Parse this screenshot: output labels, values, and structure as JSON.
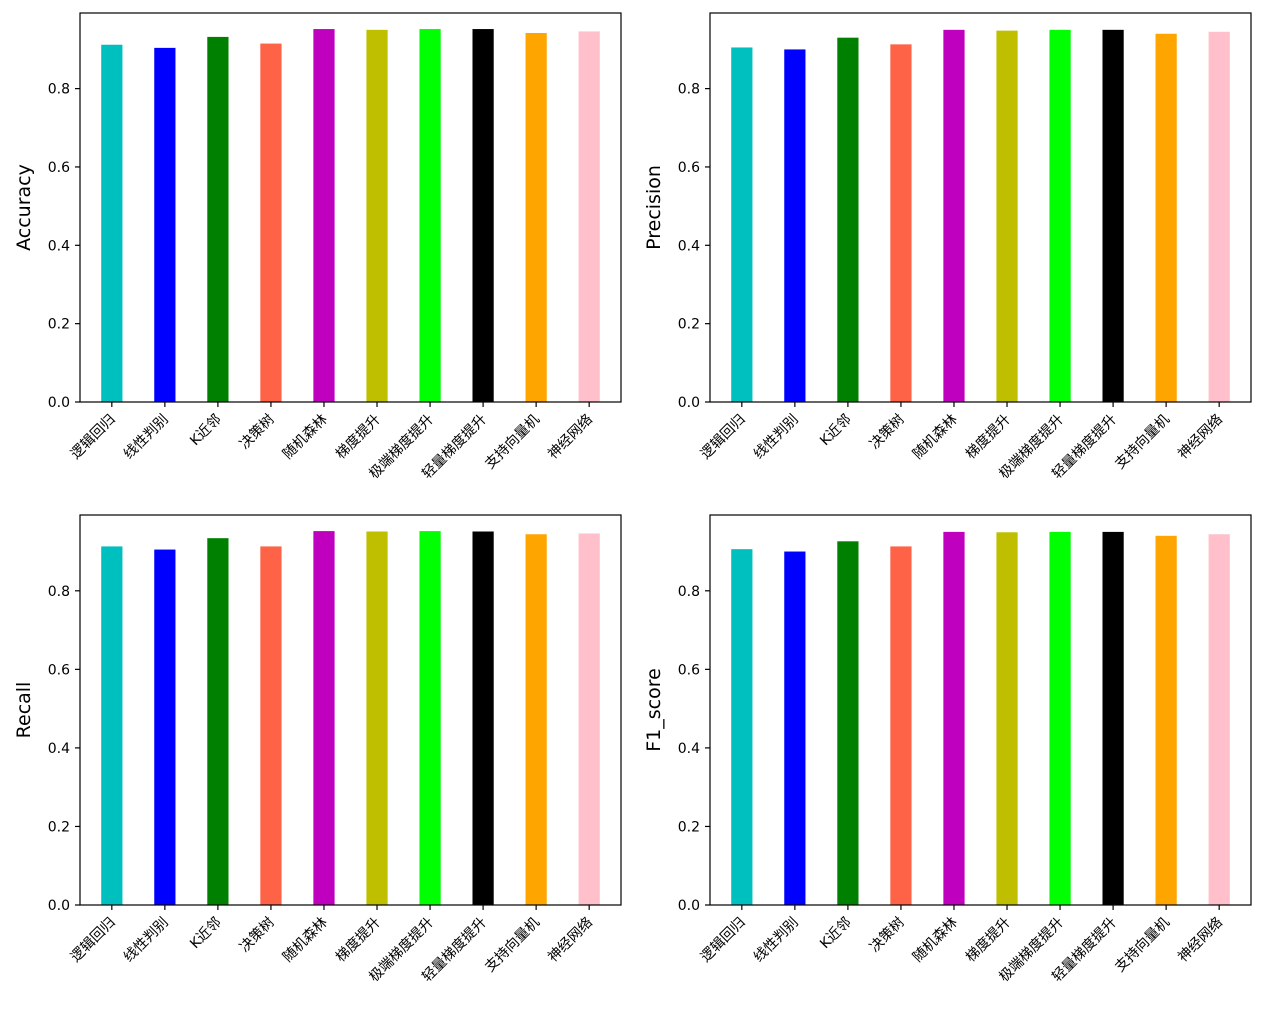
{
  "colors": [
    "#00bfbf",
    "#0000ff",
    "#008000",
    "#ff6347",
    "#bf00bf",
    "#bfbf00",
    "#00ff00",
    "#000000",
    "#ffa500",
    "#ffc0cb"
  ],
  "chart_data": [
    {
      "type": "bar",
      "title": "",
      "xlabel": "",
      "ylabel": "Accuracy",
      "categories": [
        "逻辑回归",
        "线性判别",
        "K近邻",
        "决策树",
        "随机森林",
        "梯度提升",
        "极端梯度提升",
        "轻量梯度提升",
        "支持向量机",
        "神经网络"
      ],
      "values": [
        0.912,
        0.904,
        0.932,
        0.915,
        0.952,
        0.95,
        0.952,
        0.952,
        0.942,
        0.946
      ],
      "ylim": [
        0,
        0.993
      ],
      "yticks": [
        0.0,
        0.2,
        0.4,
        0.6,
        0.8
      ],
      "ytick_labels": [
        "0.0",
        "0.2",
        "0.4",
        "0.6",
        "0.8"
      ],
      "grid": false,
      "legend": "none"
    },
    {
      "type": "bar",
      "title": "",
      "xlabel": "",
      "ylabel": "Precision",
      "categories": [
        "逻辑回归",
        "线性判别",
        "K近邻",
        "决策树",
        "随机森林",
        "梯度提升",
        "极端梯度提升",
        "轻量梯度提升",
        "支持向量机",
        "神经网络"
      ],
      "values": [
        0.905,
        0.9,
        0.93,
        0.913,
        0.95,
        0.948,
        0.95,
        0.95,
        0.94,
        0.945
      ],
      "ylim": [
        0,
        0.993
      ],
      "yticks": [
        0.0,
        0.2,
        0.4,
        0.6,
        0.8
      ],
      "ytick_labels": [
        "0.0",
        "0.2",
        "0.4",
        "0.6",
        "0.8"
      ],
      "grid": false,
      "legend": "none"
    },
    {
      "type": "bar",
      "title": "",
      "xlabel": "",
      "ylabel": "Recall",
      "categories": [
        "逻辑回归",
        "线性判别",
        "K近邻",
        "决策树",
        "随机森林",
        "梯度提升",
        "极端梯度提升",
        "轻量梯度提升",
        "支持向量机",
        "神经网络"
      ],
      "values": [
        0.913,
        0.905,
        0.934,
        0.913,
        0.952,
        0.951,
        0.952,
        0.951,
        0.944,
        0.946
      ],
      "ylim": [
        0,
        0.993
      ],
      "yticks": [
        0.0,
        0.2,
        0.4,
        0.6,
        0.8
      ],
      "ytick_labels": [
        "0.0",
        "0.2",
        "0.4",
        "0.6",
        "0.8"
      ],
      "grid": false,
      "legend": "none"
    },
    {
      "type": "bar",
      "title": "",
      "xlabel": "",
      "ylabel": "F1_score",
      "categories": [
        "逻辑回归",
        "线性判别",
        "K近邻",
        "决策树",
        "随机森林",
        "梯度提升",
        "极端梯度提升",
        "轻量梯度提升",
        "支持向量机",
        "神经网络"
      ],
      "values": [
        0.906,
        0.9,
        0.926,
        0.913,
        0.95,
        0.949,
        0.95,
        0.95,
        0.94,
        0.944
      ],
      "ylim": [
        0,
        0.993
      ],
      "yticks": [
        0.0,
        0.2,
        0.4,
        0.6,
        0.8
      ],
      "ytick_labels": [
        "0.0",
        "0.2",
        "0.4",
        "0.6",
        "0.8"
      ],
      "grid": false,
      "legend": "none"
    }
  ]
}
